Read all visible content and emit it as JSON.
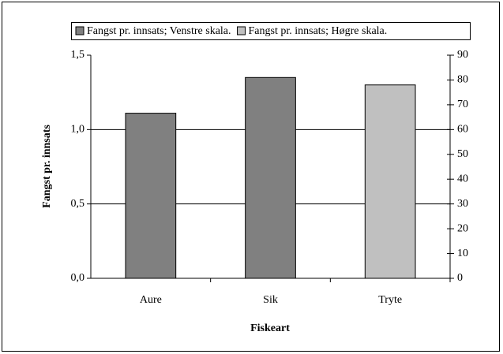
{
  "chart_data": {
    "type": "bar",
    "categories": [
      "Aure",
      "Sik",
      "Tryte"
    ],
    "series": [
      {
        "name": "Fangst pr. innsats; Venstre skala.",
        "color": "#808080",
        "values": [
          1.11,
          1.35,
          null
        ]
      },
      {
        "name": "Fangst pr. innsats; Høgre skala.",
        "color": "#c0c0c0",
        "values": [
          null,
          null,
          78
        ],
        "axis": "y2"
      }
    ],
    "ylim": [
      0,
      1.5
    ],
    "yticks": [
      {
        "value": 0,
        "label": "0,0"
      },
      {
        "value": 0.5,
        "label": "0,5"
      },
      {
        "value": 1,
        "label": "1,0"
      },
      {
        "value": 1.5,
        "label": "1,5"
      }
    ],
    "y2lim": [
      0,
      90
    ],
    "y2ticks": [
      0,
      10,
      20,
      30,
      40,
      50,
      60,
      70,
      80,
      90
    ],
    "ylabel": "Fangst pr. innsats",
    "xlabel": "Fiskeart",
    "grid": true,
    "legend": "top"
  }
}
